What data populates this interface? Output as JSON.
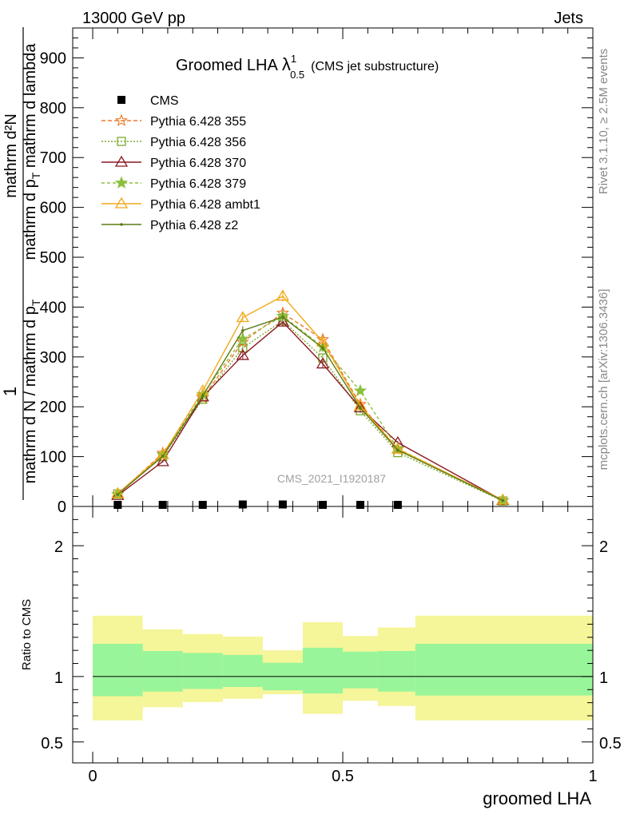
{
  "header": {
    "energy_label": "13000 GeV pp",
    "category_label": "Jets"
  },
  "side_labels": {
    "rivet": "Rivet 3.1.10, ≥ 2.5M events",
    "mcplots": "mcplots.cern.ch [arXiv:1306.3436]"
  },
  "chart_data": [
    {
      "type": "line",
      "panel": "main",
      "title": "Groomed LHA",
      "title_symbol": "λ",
      "title_sup": "1",
      "title_sub": "0.5",
      "subtitle": "(CMS jet substructure)",
      "watermark": "CMS_2021_I1920187",
      "ylabel_numerator": "mathrm d²N",
      "ylabel_denominator": "mathrm d p",
      "ylabel_denominator_sub": "T",
      "ylabel_denominator_tail": " mathrm d lambda",
      "ylabel_prefix_num": "1",
      "ylabel_prefix_den": "mathrm d N / mathrm d p",
      "ylabel_prefix_den_sub": "T",
      "ylim": [
        0,
        960
      ],
      "xlim": [
        -0.04,
        1.0
      ],
      "yticks": [
        0,
        100,
        200,
        300,
        400,
        500,
        600,
        700,
        800,
        900
      ],
      "ytick_labels": [
        "0",
        "100",
        "200",
        "300",
        "400",
        "500",
        "600",
        "700",
        "800",
        "900"
      ],
      "legend_position": "top-left",
      "x": [
        0.05,
        0.14,
        0.22,
        0.3,
        0.38,
        0.46,
        0.535,
        0.61,
        0.82
      ],
      "series": [
        {
          "name": "CMS",
          "color": "#000000",
          "marker": "square",
          "dash": "none",
          "values": [
            1.5,
            1.5,
            2.5,
            4,
            4,
            3,
            2,
            1.5,
            0
          ]
        },
        {
          "name": "Pythia 6.428 355",
          "color": "#f07828",
          "marker": "star-open",
          "dash": "5,3",
          "values": [
            24,
            107,
            218,
            330,
            388,
            335,
            205,
            115,
            12
          ]
        },
        {
          "name": "Pythia 6.428 356",
          "color": "#7ca82c",
          "marker": "square-open",
          "dash": "2,2",
          "values": [
            25,
            100,
            215,
            318,
            373,
            298,
            192,
            108,
            11
          ]
        },
        {
          "name": "Pythia 6.428 370",
          "color": "#8b1a24",
          "marker": "triangle-open",
          "dash": "none",
          "values": [
            22,
            90,
            220,
            303,
            370,
            286,
            198,
            128,
            12
          ]
        },
        {
          "name": "Pythia 6.428 379",
          "color": "#8cc03c",
          "marker": "star",
          "dash": "4,3",
          "values": [
            24,
            104,
            225,
            336,
            382,
            320,
            232,
            116,
            12
          ]
        },
        {
          "name": "Pythia 6.428 ambt1",
          "color": "#f2a818",
          "marker": "triangle-open",
          "dash": "none",
          "values": [
            26,
            104,
            232,
            379,
            422,
            330,
            202,
            115,
            13
          ]
        },
        {
          "name": "Pythia 6.428 z2",
          "color": "#5c7a14",
          "marker": "dot",
          "dash": "none",
          "values": [
            24,
            101,
            222,
            353,
            380,
            318,
            198,
            113,
            12
          ]
        }
      ]
    },
    {
      "type": "area",
      "panel": "ratio",
      "ylabel": "Ratio to CMS",
      "xlabel": "groomed LHA",
      "ylim": [
        0.34,
        2.3
      ],
      "xlim": [
        -0.04,
        1.0
      ],
      "yticks": [
        0.5,
        1,
        2
      ],
      "ytick_labels": [
        "0.5",
        "1",
        "2"
      ],
      "xticks": [
        0,
        0.5,
        1
      ],
      "xtick_labels": [
        "0",
        "0.5",
        "1"
      ],
      "reference_line": 1,
      "bins": [
        0,
        0.1,
        0.18,
        0.26,
        0.34,
        0.42,
        0.5,
        0.57,
        0.645,
        1.0
      ],
      "stat_band": {
        "color": "#99f599",
        "lower": [
          0.85,
          0.885,
          0.905,
          0.92,
          0.895,
          0.87,
          0.91,
          0.885,
          0.855
        ],
        "upper": [
          1.25,
          1.195,
          1.18,
          1.165,
          1.105,
          1.22,
          1.19,
          1.195,
          1.25
        ]
      },
      "syst_band": {
        "color": "#f5f599",
        "lower": [
          0.665,
          0.765,
          0.805,
          0.83,
          0.865,
          0.715,
          0.815,
          0.775,
          0.665
        ],
        "upper": [
          1.465,
          1.36,
          1.325,
          1.305,
          1.2,
          1.415,
          1.31,
          1.375,
          1.465
        ]
      }
    }
  ]
}
